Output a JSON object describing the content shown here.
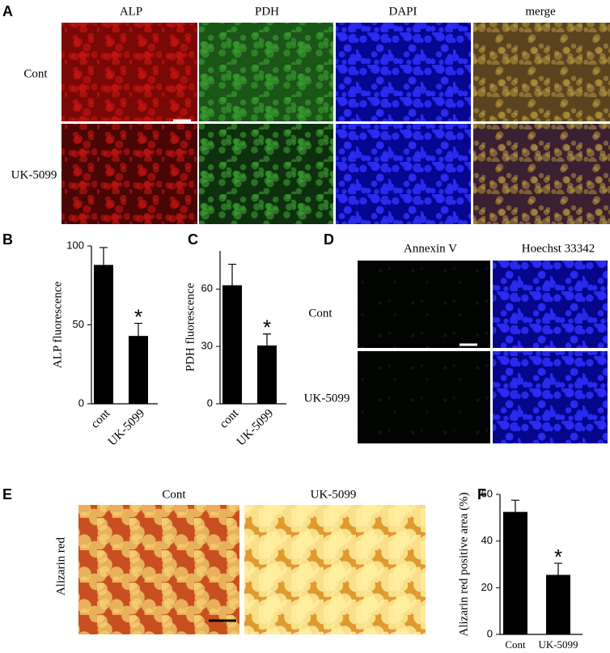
{
  "panels": {
    "a": {
      "letter": "A",
      "columns": [
        "ALP",
        "PDH",
        "DAPI",
        "merge"
      ],
      "rows": [
        "Cont",
        "UK-5099"
      ]
    },
    "b": {
      "letter": "B"
    },
    "c": {
      "letter": "C"
    },
    "d": {
      "letter": "D",
      "columns": [
        "Annexin V",
        "Hoechst 33342"
      ],
      "rows": [
        "Cont",
        "UK-5099"
      ]
    },
    "e": {
      "letter": "E",
      "columns": [
        "Cont",
        "UK-5099"
      ],
      "row_label": "Alizarin red"
    },
    "f": {
      "letter": "F"
    }
  },
  "chart_data": [
    {
      "type": "bar",
      "ylabel": "ALP fluorescence",
      "categories": [
        "cont",
        "UK-5099"
      ],
      "values": [
        88,
        43
      ],
      "errors": [
        11,
        8
      ],
      "ylim": [
        0,
        100
      ],
      "yticks": [
        0,
        50,
        100
      ],
      "color": "#000000",
      "annotation": "*"
    },
    {
      "type": "bar",
      "ylabel": "PDH fluorescence",
      "categories": [
        "cont",
        "UK-5099"
      ],
      "values": [
        62,
        30.5
      ],
      "errors": [
        11,
        6
      ],
      "ylim": [
        0,
        80
      ],
      "yticks": [
        0,
        30,
        60
      ],
      "color": "#000000",
      "annotation": "*"
    },
    {
      "type": "bar",
      "ylabel": "Alizarin red positive area (%)",
      "categories": [
        "Cont",
        "UK-5099"
      ],
      "values": [
        52.5,
        25.5
      ],
      "errors": [
        5,
        5
      ],
      "ylim": [
        0,
        60
      ],
      "yticks": [
        0,
        20,
        40,
        60
      ],
      "color": "#000000",
      "annotation": "*"
    }
  ]
}
